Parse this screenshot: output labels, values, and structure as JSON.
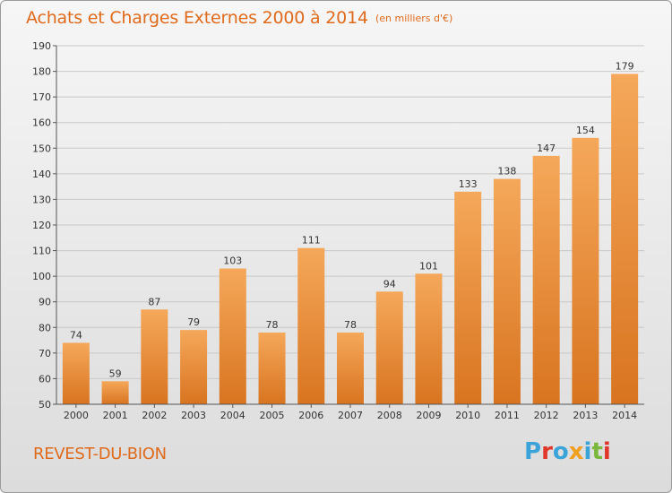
{
  "header": {
    "title": "Achats et Charges Externes 2000 à 2014",
    "subtitle": "(en milliers d'€)"
  },
  "footer": {
    "place": "REVEST-DU-BION",
    "logo_text": "Proxiti",
    "logo_colors": [
      "#3aa3d8",
      "#e0362b",
      "#3aa3d8",
      "#f0a020",
      "#3aa3d8",
      "#7ab83c",
      "#e0362b"
    ]
  },
  "colors": {
    "bar_light": "#f5a85a",
    "bar_dark": "#d87420",
    "accent": "#e06a1b",
    "grid": "#c8c8c8"
  },
  "chart_data": {
    "type": "bar",
    "categories": [
      "2000",
      "2001",
      "2002",
      "2003",
      "2004",
      "2005",
      "2006",
      "2007",
      "2008",
      "2009",
      "2010",
      "2011",
      "2012",
      "2013",
      "2014"
    ],
    "values": [
      74,
      59,
      87,
      79,
      103,
      78,
      111,
      78,
      94,
      101,
      133,
      138,
      147,
      154,
      179
    ],
    "ylim": [
      50,
      190
    ],
    "yticks": [
      50,
      60,
      70,
      80,
      90,
      100,
      110,
      120,
      130,
      140,
      150,
      160,
      170,
      180,
      190
    ],
    "grid": true,
    "title": "Achats et Charges Externes 2000 à 2014",
    "xlabel": "",
    "ylabel": ""
  }
}
